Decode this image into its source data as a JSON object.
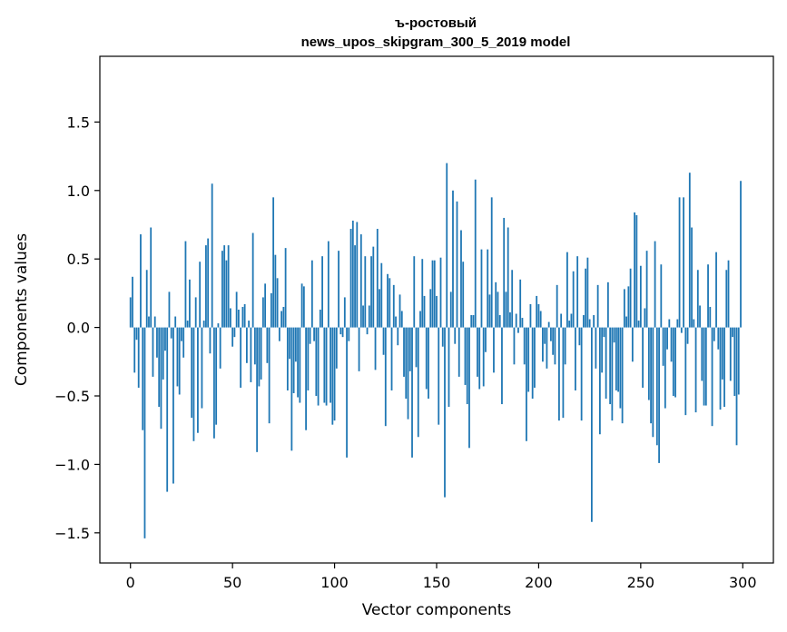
{
  "chart_data": {
    "type": "bar",
    "title_line1": "ъ-ростовый",
    "title_line2": "news_upos_skipgram_300_5_2019 model",
    "xlabel": "Vector components",
    "ylabel": "Components values",
    "xlim": [
      -15,
      315
    ],
    "ylim": [
      -1.72,
      1.98
    ],
    "xticks": [
      0,
      50,
      100,
      150,
      200,
      250,
      300
    ],
    "yticks": [
      1.5,
      1.0,
      0.5,
      0.0,
      -0.5,
      -1.0,
      -1.5
    ],
    "ytick_labels": [
      "1.5",
      "1.0",
      "0.5",
      "0.0",
      "−0.5",
      "−1.0",
      "−1.5"
    ],
    "xtick_labels": [
      "0",
      "50",
      "100",
      "150",
      "200",
      "250",
      "300"
    ],
    "grid": false,
    "bar_color": "#1f77b4",
    "values": [
      0.22,
      0.37,
      -0.33,
      -0.09,
      -0.44,
      0.68,
      -0.75,
      -1.54,
      0.42,
      0.08,
      0.73,
      -0.36,
      0.08,
      -0.22,
      -0.58,
      -0.74,
      -0.38,
      -0.17,
      -1.2,
      0.26,
      -0.08,
      -1.14,
      0.08,
      -0.43,
      -0.49,
      -0.1,
      -0.22,
      0.63,
      0.05,
      0.35,
      -0.66,
      -0.83,
      0.22,
      -0.77,
      0.48,
      -0.59,
      0.05,
      0.6,
      0.65,
      -0.19,
      1.05,
      -0.81,
      -0.71,
      0.03,
      -0.3,
      0.56,
      0.6,
      0.49,
      0.6,
      0.14,
      -0.14,
      -0.07,
      0.26,
      0.13,
      -0.44,
      0.15,
      0.17,
      -0.26,
      0.05,
      -0.4,
      0.69,
      -0.27,
      -0.91,
      -0.43,
      -0.38,
      0.22,
      0.32,
      -0.26,
      -0.7,
      0.25,
      0.95,
      0.53,
      0.36,
      -0.1,
      0.12,
      0.15,
      0.58,
      -0.46,
      -0.23,
      -0.9,
      -0.48,
      -0.25,
      -0.51,
      -0.55,
      0.32,
      0.3,
      -0.75,
      -0.46,
      -0.12,
      0.49,
      -0.1,
      -0.5,
      -0.57,
      0.13,
      0.52,
      -0.55,
      -0.57,
      0.63,
      -0.55,
      -0.71,
      -0.68,
      -0.3,
      0.56,
      -0.05,
      -0.07,
      0.22,
      -0.95,
      -0.1,
      0.72,
      0.78,
      0.6,
      0.77,
      -0.32,
      0.68,
      0.16,
      0.52,
      -0.05,
      0.16,
      0.52,
      0.59,
      -0.31,
      0.72,
      0.28,
      0.47,
      -0.2,
      -0.72,
      0.39,
      0.36,
      -0.46,
      0.31,
      0.08,
      -0.13,
      0.24,
      0.12,
      -0.36,
      -0.52,
      -0.67,
      -0.32,
      -0.95,
      0.52,
      -0.29,
      -0.8,
      0.12,
      0.5,
      0.23,
      -0.45,
      -0.52,
      0.28,
      0.49,
      0.49,
      0.23,
      -0.71,
      0.51,
      -0.14,
      -1.24,
      1.2,
      -0.58,
      0.26,
      1.0,
      -0.12,
      0.92,
      -0.36,
      0.71,
      0.48,
      -0.42,
      -0.56,
      -0.88,
      0.09,
      0.09,
      1.08,
      -0.36,
      -0.45,
      0.57,
      -0.43,
      -0.18,
      0.57,
      0.24,
      0.95,
      -0.33,
      0.33,
      0.26,
      0.09,
      -0.56,
      0.8,
      0.26,
      0.73,
      0.11,
      0.42,
      -0.27,
      0.1,
      -0.04,
      0.35,
      0.07,
      -0.27,
      -0.83,
      -0.47,
      0.17,
      -0.52,
      -0.44,
      0.23,
      0.17,
      0.12,
      -0.25,
      -0.12,
      -0.3,
      0.04,
      -0.1,
      -0.2,
      -0.27,
      0.31,
      -0.68,
      0.1,
      -0.66,
      -0.27,
      0.55,
      0.05,
      0.1,
      0.41,
      -0.46,
      0.52,
      -0.13,
      -0.68,
      0.09,
      0.43,
      0.51,
      0.06,
      -1.42,
      0.09,
      -0.3,
      0.31,
      -0.78,
      -0.33,
      -0.07,
      -0.52,
      0.33,
      -0.56,
      -0.68,
      -0.11,
      -0.46,
      -0.47,
      -0.59,
      -0.7,
      0.28,
      0.08,
      0.3,
      0.43,
      -0.25,
      0.84,
      0.82,
      0.05,
      0.45,
      -0.44,
      0.14,
      0.56,
      -0.53,
      -0.7,
      -0.8,
      0.63,
      -0.86,
      -0.99,
      0.46,
      -0.28,
      -0.59,
      -0.16,
      0.06,
      -0.25,
      -0.5,
      -0.51,
      0.06,
      0.95,
      -0.04,
      0.95,
      -0.64,
      -0.12,
      1.13,
      0.73,
      0.06,
      -0.62,
      0.42,
      0.16,
      -0.39,
      -0.57,
      -0.57,
      0.46,
      0.15,
      -0.72,
      -0.1,
      0.55,
      -0.16,
      -0.6,
      -0.38,
      -0.58,
      0.42,
      0.49,
      -0.39,
      -0.07,
      -0.5,
      -0.86,
      -0.49,
      1.07
    ]
  }
}
